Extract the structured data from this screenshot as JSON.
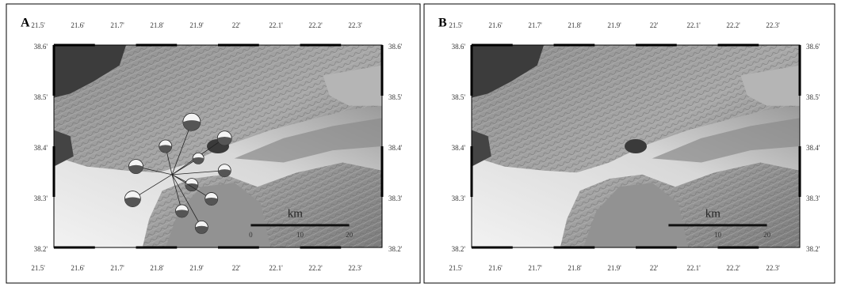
{
  "panels": [
    {
      "label": "A",
      "lon_labels": [
        "21.5'",
        "21.6'",
        "21.7'",
        "21.8'",
        "21.9'",
        "22'",
        "22.1'",
        "22.2'",
        "22.3'"
      ],
      "lat_labels": [
        "38.6'",
        "38.5'",
        "38.4'",
        "38.3'",
        "38.2'"
      ],
      "scale": {
        "unit": "km",
        "ticks": [
          "0",
          "10",
          "20"
        ]
      }
    },
    {
      "label": "B",
      "lon_labels": [
        "21.5'",
        "21.6'",
        "21.7'",
        "21.8'",
        "21.9'",
        "22'",
        "22.1'",
        "22.2'",
        "22.3'"
      ],
      "lat_labels": [
        "38.6'",
        "38.5'",
        "38.4'",
        "38.3'",
        "38.2'"
      ],
      "scale": {
        "unit": "km",
        "ticks": [
          "10",
          "20"
        ]
      }
    }
  ]
}
